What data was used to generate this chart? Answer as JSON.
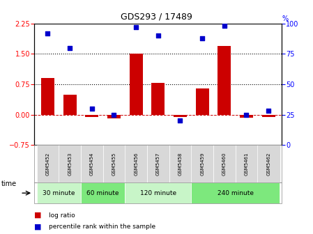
{
  "title": "GDS293 / 17489",
  "samples": [
    "GSM5452",
    "GSM5453",
    "GSM5454",
    "GSM5455",
    "GSM5456",
    "GSM5457",
    "GSM5458",
    "GSM5459",
    "GSM5460",
    "GSM5461",
    "GSM5462"
  ],
  "log_ratio": [
    0.9,
    0.5,
    -0.05,
    -0.1,
    1.5,
    0.78,
    -0.05,
    0.65,
    1.7,
    -0.08,
    -0.05
  ],
  "percentile": [
    92,
    80,
    30,
    25,
    97,
    90,
    20,
    88,
    98,
    25,
    28
  ],
  "group_defs": [
    [
      0,
      1,
      "30 minute",
      "#c8f5c8"
    ],
    [
      2,
      3,
      "60 minute",
      "#7de87d"
    ],
    [
      4,
      6,
      "120 minute",
      "#c8f5c8"
    ],
    [
      7,
      10,
      "240 minute",
      "#7de87d"
    ]
  ],
  "ylim_left": [
    -0.75,
    2.25
  ],
  "ylim_right": [
    0,
    100
  ],
  "yticks_left": [
    -0.75,
    0,
    0.75,
    1.5,
    2.25
  ],
  "yticks_right": [
    0,
    25,
    50,
    75,
    100
  ],
  "hlines": [
    0.75,
    1.5
  ],
  "bar_color": "#cc0000",
  "dot_color": "#0000cc",
  "zero_line_color": "#cc0000",
  "sample_box_color": "#d8d8d8",
  "time_label": "time",
  "legend_log": "log ratio",
  "legend_pct": "percentile rank within the sample"
}
